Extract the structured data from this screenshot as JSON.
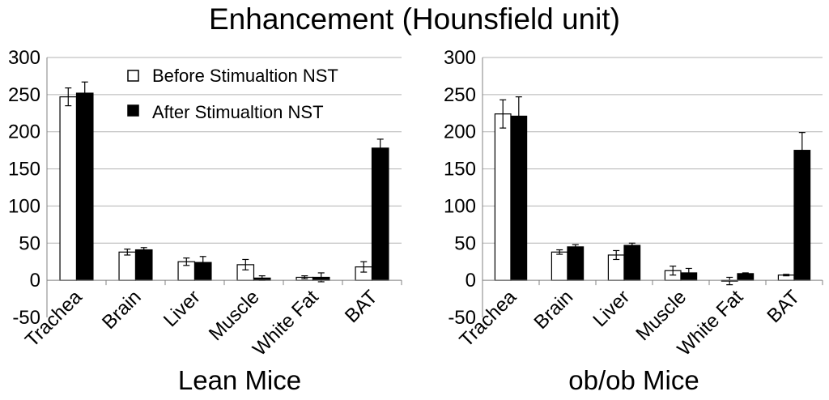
{
  "title": "Enhancement (Hounsfield unit)",
  "chart_data": [
    {
      "type": "bar",
      "title": "Lean Mice",
      "xlabel": "Lean Mice",
      "ylabel": "",
      "ylim": [
        -50,
        300
      ],
      "yticks": [
        -50,
        0,
        50,
        100,
        150,
        200,
        250,
        300
      ],
      "categories": [
        "Trachea",
        "Brain",
        "Liver",
        "Muscle",
        "White Fat",
        "BAT"
      ],
      "series": [
        {
          "name": "Before Stimualtion NST",
          "fill": "white",
          "values": [
            247,
            38,
            25,
            21,
            4,
            18
          ],
          "errors": [
            12,
            4,
            5,
            7,
            2,
            7
          ]
        },
        {
          "name": "After Stimualtion NST",
          "fill": "black",
          "values": [
            252,
            41,
            24,
            3,
            4,
            178
          ],
          "errors": [
            15,
            3,
            8,
            3,
            6,
            12
          ]
        }
      ],
      "grid": true,
      "legend": "top-right"
    },
    {
      "type": "bar",
      "title": "ob/ob Mice",
      "xlabel": "ob/ob Mice",
      "ylabel": "",
      "ylim": [
        -50,
        300
      ],
      "yticks": [
        -50,
        0,
        50,
        100,
        150,
        200,
        250,
        300
      ],
      "categories": [
        "Trachea",
        "Brain",
        "Liver",
        "Muscle",
        "White Fat",
        "BAT"
      ],
      "series": [
        {
          "name": "Before Stimualtion NST",
          "fill": "white",
          "values": [
            224,
            38,
            34,
            13,
            -1,
            7
          ],
          "errors": [
            19,
            3,
            6,
            6,
            5,
            1
          ]
        },
        {
          "name": "After Stimualtion NST",
          "fill": "black",
          "values": [
            221,
            45,
            47,
            10,
            9,
            175
          ],
          "errors": [
            26,
            3,
            3,
            6,
            1,
            24
          ]
        }
      ],
      "grid": true
    }
  ],
  "colors": {
    "axis": "#808080",
    "grid": "#b3b3b3",
    "bar_before": "#ffffff",
    "bar_after": "#000000"
  }
}
